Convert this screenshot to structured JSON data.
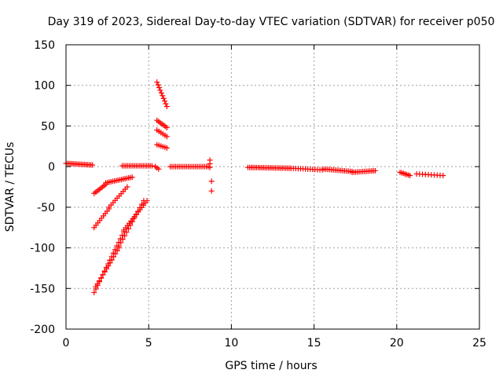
{
  "chart_data": {
    "type": "scatter",
    "title": "Day 319 of 2023, Sidereal Day-to-day VTEC variation (SDTVAR) for receiver p050",
    "xlabel": "GPS time / hours",
    "ylabel": "SDTVAR / TECUs",
    "xlim": [
      0,
      25
    ],
    "ylim": [
      -200,
      150
    ],
    "xticks": [
      0,
      5,
      10,
      15,
      20,
      25
    ],
    "yticks": [
      -200,
      -150,
      -100,
      -50,
      0,
      50,
      100,
      150
    ],
    "grid": true,
    "marker": "plus",
    "color": "#ff0000",
    "segments": [
      {
        "x0": 0.0,
        "x1": 1.6,
        "y0": 4,
        "y1": 2,
        "n": 18
      },
      {
        "x0": 1.7,
        "x1": 2.4,
        "y0": -33,
        "y1": -22,
        "n": 8
      },
      {
        "x0": 2.4,
        "x1": 4.0,
        "y0": -20,
        "y1": -13,
        "n": 16
      },
      {
        "x0": 3.4,
        "x1": 5.2,
        "y0": 1,
        "y1": 1,
        "n": 18
      },
      {
        "x0": 1.7,
        "x1": 2.6,
        "y0": -75,
        "y1": -52,
        "n": 9
      },
      {
        "x0": 2.6,
        "x1": 3.7,
        "y0": -50,
        "y1": -25,
        "n": 10
      },
      {
        "x0": 1.7,
        "x1": 3.5,
        "y0": -155,
        "y1": -80,
        "n": 18
      },
      {
        "x0": 3.5,
        "x1": 4.9,
        "y0": -78,
        "y1": -42,
        "n": 14
      },
      {
        "x0": 1.8,
        "x1": 3.2,
        "y0": -148,
        "y1": -100,
        "n": 14
      },
      {
        "x0": 3.2,
        "x1": 4.7,
        "y0": -98,
        "y1": -42,
        "n": 14
      },
      {
        "x0": 5.5,
        "x1": 6.1,
        "y0": 104,
        "y1": 74,
        "n": 10
      },
      {
        "x0": 5.5,
        "x1": 6.1,
        "y0": 57,
        "y1": 48,
        "n": 7
      },
      {
        "x0": 5.5,
        "x1": 6.1,
        "y0": 45,
        "y1": 37,
        "n": 6
      },
      {
        "x0": 5.5,
        "x1": 6.1,
        "y0": 27,
        "y1": 23,
        "n": 6
      },
      {
        "x0": 5.4,
        "x1": 5.6,
        "y0": 0,
        "y1": -3,
        "n": 3
      },
      {
        "x0": 6.3,
        "x1": 8.6,
        "y0": 0,
        "y1": 0,
        "n": 22
      },
      {
        "x0": 8.7,
        "x1": 8.7,
        "y0": 8,
        "y1": -1,
        "n": 3
      },
      {
        "x0": 8.8,
        "x1": 8.8,
        "y0": -18,
        "y1": -30,
        "n": 2
      },
      {
        "x0": 11.0,
        "x1": 13.6,
        "y0": -1,
        "y1": -2,
        "n": 26
      },
      {
        "x0": 13.6,
        "x1": 15.5,
        "y0": -2,
        "y1": -4,
        "n": 14
      },
      {
        "x0": 15.6,
        "x1": 17.3,
        "y0": -3,
        "y1": -6,
        "n": 16
      },
      {
        "x0": 17.3,
        "x1": 18.7,
        "y0": -7,
        "y1": -5,
        "n": 14
      },
      {
        "x0": 20.2,
        "x1": 20.8,
        "y0": -7,
        "y1": -11,
        "n": 7
      },
      {
        "x0": 21.2,
        "x1": 22.8,
        "y0": -9,
        "y1": -11,
        "n": 10
      }
    ]
  }
}
